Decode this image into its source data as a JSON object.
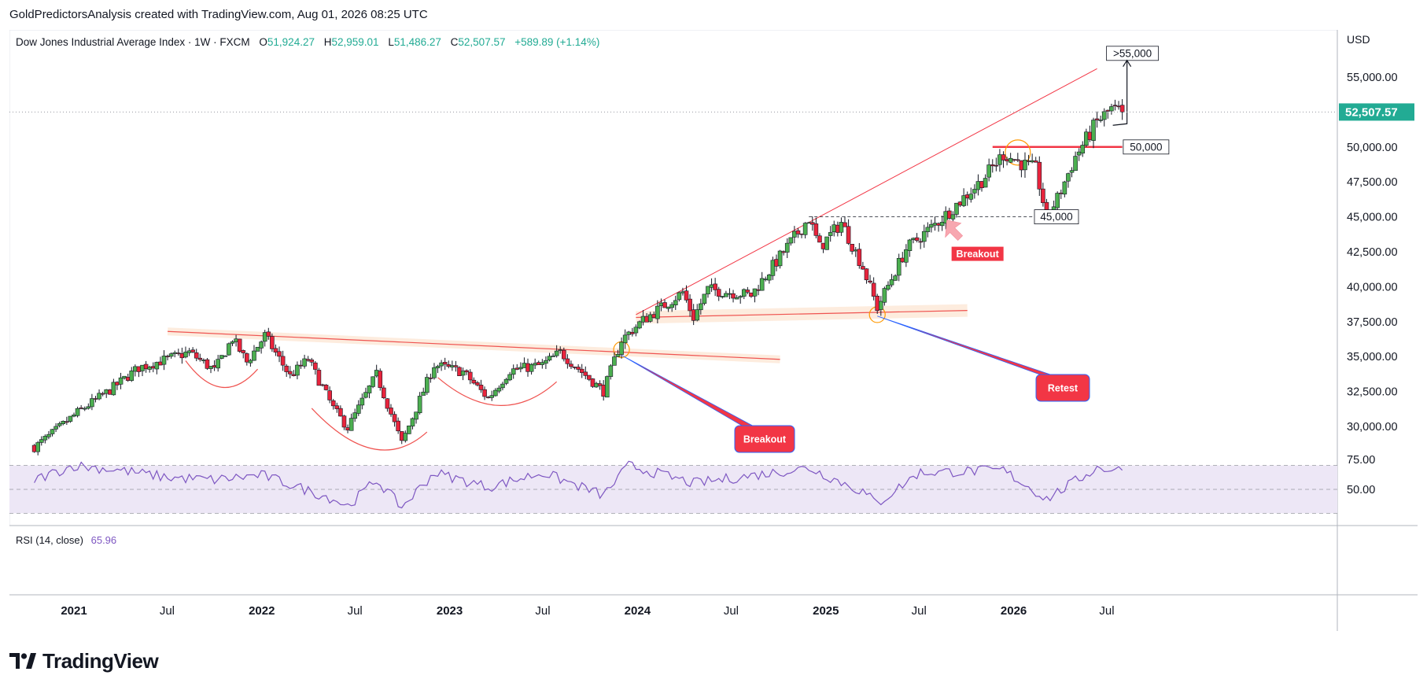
{
  "header": {
    "credit": "GoldPredictorsAnalysis created with TradingView.com, Aug 01, 2026 08:25 UTC"
  },
  "legend": {
    "symbol": "Dow Jones Industrial Average Index · 1W · FXCM",
    "o_label": "O",
    "o_value": "51,924.27",
    "h_label": "H",
    "h_value": "52,959.01",
    "l_label": "L",
    "l_value": "51,486.27",
    "c_label": "C",
    "c_value": "52,507.57",
    "change": "+589.89 (+1.14%)"
  },
  "currency": "USD",
  "last_price": "52,507.57",
  "colors": {
    "up": "#26a69a",
    "up_candle": "#4caf50",
    "down": "#ef5350",
    "down_candle": "#e8243c",
    "rsi": "#7e57c2",
    "rsi_band": "#ede7f6",
    "accent_label": "#f23645",
    "grid": "#e0e3eb"
  },
  "annotations": {
    "breakout1": "Breakout",
    "breakout2": "Breakout",
    "retest": "Retest",
    "level_45": "45,000",
    "level_50": "50,000",
    "target": ">55,000"
  },
  "rsi": {
    "label": "RSI (14, close)",
    "value": "65.96",
    "axis_ticks": [
      "75.00",
      "50.00"
    ]
  },
  "footer": {
    "brand": "TradingView"
  },
  "chart_data": {
    "type": "candlestick",
    "title": "Dow Jones Industrial Average Index · 1W · FXCM",
    "y_axis_ticks": [
      "55,000.00",
      "52,500.00",
      "50,000.00",
      "47,500.00",
      "45,000.00",
      "42,500.00",
      "40,000.00",
      "37,500.00",
      "35,000.00",
      "32,500.00",
      "30,000.00"
    ],
    "y_tick_values": [
      55000,
      52500,
      50000,
      47500,
      45000,
      42500,
      40000,
      37500,
      35000,
      32500,
      30000
    ],
    "x_axis_ticks": [
      "2021",
      "Jul",
      "2022",
      "Jul",
      "2023",
      "Jul",
      "2024",
      "Jul",
      "2025",
      "Jul",
      "2026",
      "Jul"
    ],
    "x_tick_dates": [
      "2021-01-01",
      "2021-07-01",
      "2022-01-01",
      "2022-07-01",
      "2023-01-01",
      "2023-07-01",
      "2024-01-01",
      "2024-07-01",
      "2025-01-01",
      "2025-07-01",
      "2026-01-01",
      "2026-07-01"
    ],
    "bold_x_ticks": [
      "2021",
      "2022",
      "2023",
      "2024",
      "2025",
      "2026"
    ],
    "anchors": [
      [
        "2020-10-16",
        28500
      ],
      [
        "2020-11-13",
        29300
      ],
      [
        "2021-01-08",
        31000
      ],
      [
        "2021-03-12",
        32600
      ],
      [
        "2021-05-07",
        34200
      ],
      [
        "2021-08-13",
        35300
      ],
      [
        "2021-10-01",
        34000
      ],
      [
        "2021-11-05",
        36300
      ],
      [
        "2021-12-03",
        34600
      ],
      [
        "2022-01-07",
        36500
      ],
      [
        "2022-02-25",
        33600
      ],
      [
        "2022-04-01",
        34800
      ],
      [
        "2022-05-20",
        31300
      ],
      [
        "2022-06-17",
        29900
      ],
      [
        "2022-08-12",
        33700
      ],
      [
        "2022-09-30",
        28800
      ],
      [
        "2022-12-02",
        34400
      ],
      [
        "2023-01-27",
        33900
      ],
      [
        "2023-03-17",
        32000
      ],
      [
        "2023-04-28",
        34000
      ],
      [
        "2023-06-30",
        34400
      ],
      [
        "2023-08-04",
        35300
      ],
      [
        "2023-10-27",
        32500
      ],
      [
        "2023-12-01",
        36200
      ],
      [
        "2024-01-12",
        37600
      ],
      [
        "2024-03-29",
        39600
      ],
      [
        "2024-04-19",
        37800
      ],
      [
        "2024-05-17",
        39800
      ],
      [
        "2024-08-09",
        39400
      ],
      [
        "2024-11-29",
        44900
      ],
      [
        "2024-12-20",
        42800
      ],
      [
        "2025-01-31",
        44600
      ],
      [
        "2025-03-14",
        41400
      ],
      [
        "2025-04-11",
        38500
      ],
      [
        "2025-06-06",
        42700
      ],
      [
        "2025-08-15",
        44900
      ],
      [
        "2025-10-31",
        47600
      ],
      [
        "2025-12-12",
        49500
      ],
      [
        "2026-01-23",
        48700
      ],
      [
        "2026-02-13",
        48400
      ],
      [
        "2026-03-06",
        45000
      ],
      [
        "2026-03-27",
        46300
      ],
      [
        "2026-05-01",
        49300
      ],
      [
        "2026-06-12",
        51800
      ],
      [
        "2026-07-10",
        52700
      ],
      [
        "2026-07-31",
        52500
      ]
    ],
    "rsi_anchors": [
      [
        "2020-10-16",
        58
      ],
      [
        "2021-01-01",
        70
      ],
      [
        "2021-04-01",
        66
      ],
      [
        "2021-07-01",
        60
      ],
      [
        "2021-10-01",
        58
      ],
      [
        "2022-01-01",
        62
      ],
      [
        "2022-05-20",
        42
      ],
      [
        "2022-06-17",
        36
      ],
      [
        "2022-08-12",
        58
      ],
      [
        "2022-09-30",
        35
      ],
      [
        "2022-12-02",
        64
      ],
      [
        "2023-03-17",
        52
      ],
      [
        "2023-07-01",
        64
      ],
      [
        "2023-10-27",
        45
      ],
      [
        "2023-12-15",
        70
      ],
      [
        "2024-04-19",
        55
      ],
      [
        "2024-11-29",
        68
      ],
      [
        "2025-03-14",
        48
      ],
      [
        "2025-04-11",
        38
      ],
      [
        "2025-07-01",
        64
      ],
      [
        "2025-12-12",
        66
      ],
      [
        "2026-03-06",
        42
      ],
      [
        "2026-06-12",
        68
      ],
      [
        "2026-07-31",
        65.96
      ]
    ],
    "start_close": 28600,
    "levels": {
      "resistance_45k": 45000,
      "resistance_50k": 50000,
      "target": 55000
    },
    "legend": []
  }
}
